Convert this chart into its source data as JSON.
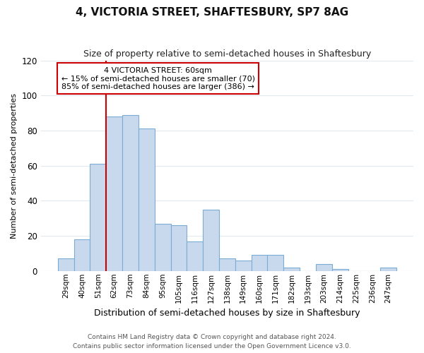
{
  "title1": "4, VICTORIA STREET, SHAFTESBURY, SP7 8AG",
  "title2": "Size of property relative to semi-detached houses in Shaftesbury",
  "xlabel": "Distribution of semi-detached houses by size in Shaftesbury",
  "ylabel": "Number of semi-detached properties",
  "categories": [
    "29sqm",
    "40sqm",
    "51sqm",
    "62sqm",
    "73sqm",
    "84sqm",
    "95sqm",
    "105sqm",
    "116sqm",
    "127sqm",
    "138sqm",
    "149sqm",
    "160sqm",
    "171sqm",
    "182sqm",
    "193sqm",
    "203sqm",
    "214sqm",
    "225sqm",
    "236sqm",
    "247sqm"
  ],
  "values": [
    7,
    18,
    61,
    88,
    89,
    81,
    27,
    26,
    17,
    35,
    7,
    6,
    9,
    9,
    2,
    0,
    4,
    1,
    0,
    0,
    2
  ],
  "bar_color": "#c8d9ee",
  "bar_edge_color": "#7badd4",
  "property_label": "4 VICTORIA STREET: 60sqm",
  "pct_smaller": 15,
  "pct_larger": 85,
  "n_smaller": 70,
  "n_larger": 386,
  "red_line_color": "#cc0000",
  "annotation_box_color": "#cc0000",
  "ylim": [
    0,
    120
  ],
  "yticks": [
    0,
    20,
    40,
    60,
    80,
    100,
    120
  ],
  "footnote1": "Contains HM Land Registry data © Crown copyright and database right 2024.",
  "footnote2": "Contains public sector information licensed under the Open Government Licence v3.0.",
  "bg_color": "#ffffff",
  "grid_color": "#e0e8f0"
}
